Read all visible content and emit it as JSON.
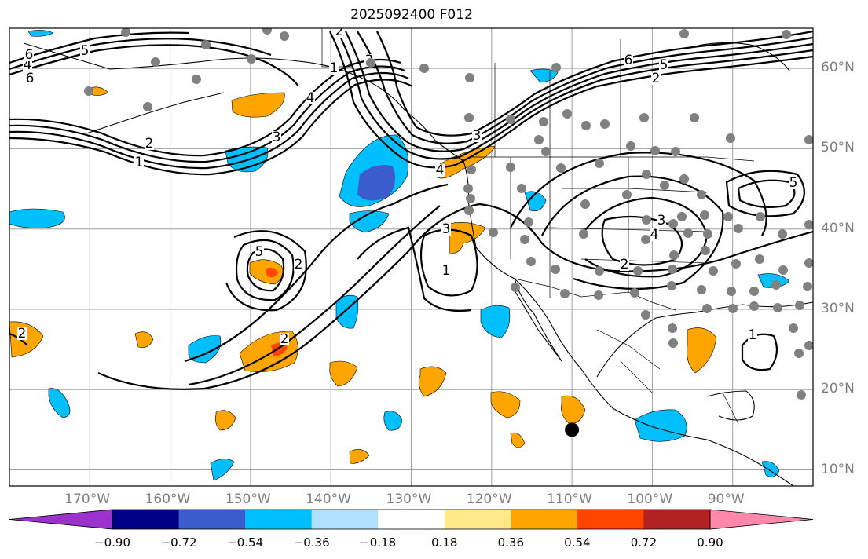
{
  "title": "2025092400 F012",
  "map": {
    "lon_range": [
      -180,
      -80
    ],
    "lat_range": [
      8,
      65
    ],
    "lon_ticks": [
      "170°W",
      "160°W",
      "150°W",
      "140°W",
      "130°W",
      "120°W",
      "110°W",
      "100°W",
      "90°W"
    ],
    "lat_ticks": [
      "60°N",
      "50°N",
      "40°N",
      "30°N",
      "20°N",
      "10°N"
    ],
    "contour_labels": [
      "4",
      "5",
      "6",
      "1",
      "2",
      "3",
      "4",
      "1",
      "2",
      "3",
      "5",
      "6",
      "2",
      "3",
      "4",
      "5",
      "2",
      "3",
      "1",
      "2",
      "3",
      "4",
      "5",
      "2",
      "6",
      "5",
      "1",
      "2"
    ],
    "marker": {
      "type": "black-dot",
      "lon": -110,
      "lat": 15
    }
  },
  "colorbar": {
    "colors": [
      "#9b32cd",
      "#000087",
      "#3a5ccd",
      "#00bfff",
      "#b0e0ff",
      "#ffffff",
      "#ffe98a",
      "#ffa500",
      "#ff4500",
      "#b12222",
      "#ff88aa"
    ],
    "labels": [
      "−0.90",
      "−0.72",
      "−0.54",
      "−0.36",
      "−0.18",
      "0.18",
      "0.36",
      "0.54",
      "0.72",
      "0.90"
    ]
  }
}
